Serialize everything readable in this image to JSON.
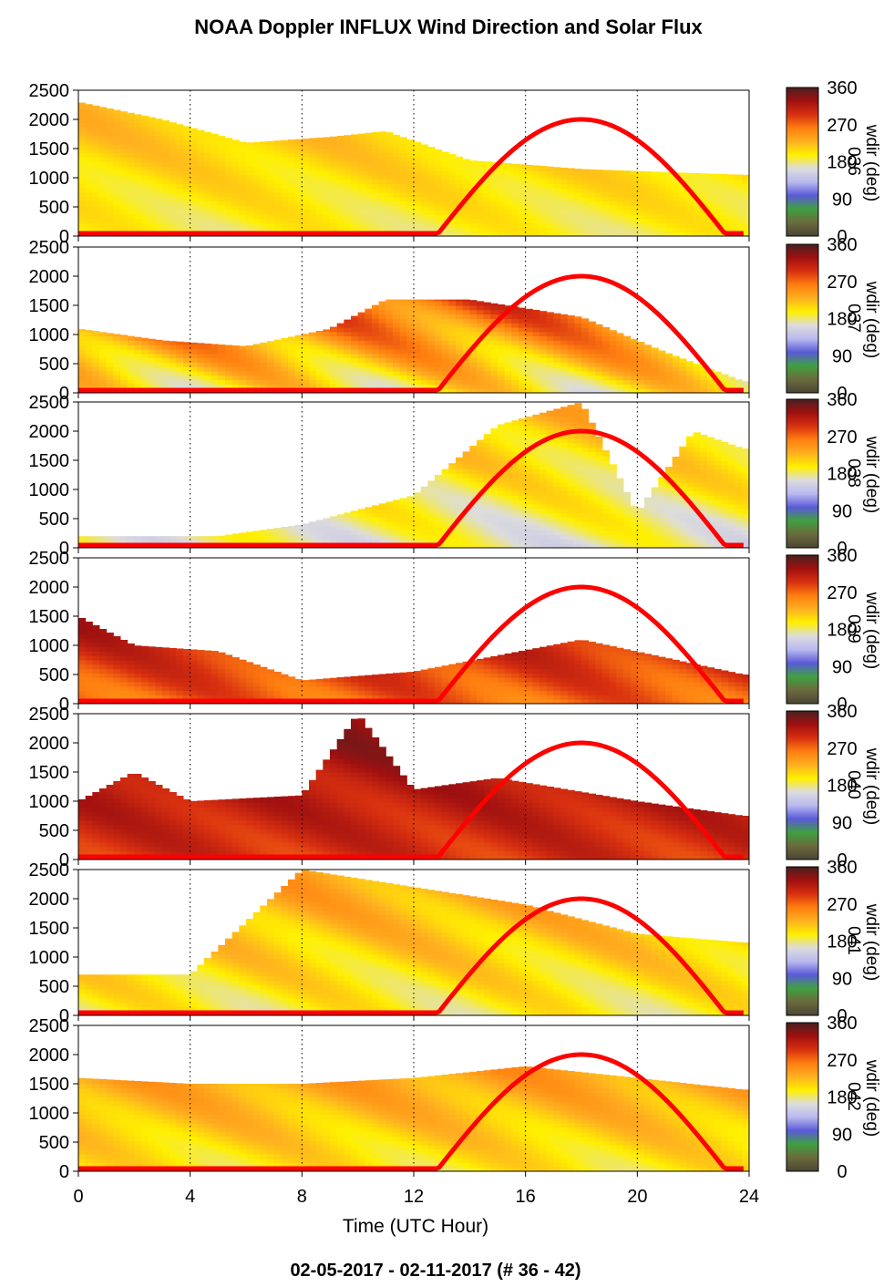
{
  "title": "NOAA Doppler INFLUX Wind Direction and Solar Flux",
  "footer": "02-05-2017 - 02-11-2017   (# 36 - 42)",
  "colors": {
    "solar_curve": "#ff0000",
    "colormap": [
      "#4a4535",
      "#6b6a3c",
      "#3fa040",
      "#5a5ad8",
      "#b9b9f0",
      "#dcdcdc",
      "#fff000",
      "#ffb020",
      "#ff7e10",
      "#d83010",
      "#a01010",
      "#4a2020"
    ]
  },
  "chart_data": {
    "type": "heatmap",
    "xlabel": "Time (UTC Hour)",
    "xlim": [
      0,
      24
    ],
    "x_ticks": [
      "0",
      "4",
      "8",
      "12",
      "16",
      "20",
      "24"
    ],
    "ylim": [
      0,
      2500
    ],
    "y_ticks": [
      "0",
      "500",
      "1000",
      "1500",
      "2000",
      "2500"
    ],
    "colorbar": {
      "range": [
        0,
        360
      ],
      "ticks": [
        "0",
        "90",
        "180",
        "270",
        "360"
      ],
      "label": "wdir (deg)"
    },
    "solar_flux": {
      "sunrise_hour": 12.8,
      "peak_hour": 18.0,
      "sunset_hour": 23.2
    },
    "panels": [
      {
        "day_label": "036",
        "wdir_layers": [
          {
            "h": [
              0,
              2300
            ],
            "deg": [
              175,
              240
            ],
            "x_end": 23.8,
            "ceiling": [
              [
                0,
                2300
              ],
              [
                3,
                2000
              ],
              [
                6,
                1600
              ],
              [
                9,
                1700
              ],
              [
                11,
                1800
              ],
              [
                14,
                1300
              ],
              [
                18,
                1150
              ],
              [
                23.8,
                1050
              ]
            ]
          }
        ]
      },
      {
        "day_label": "037",
        "wdir_layers": [
          {
            "h": [
              0,
              1700
            ],
            "deg": [
              160,
              320
            ],
            "x_end": 23.8,
            "ceiling": [
              [
                0,
                1100
              ],
              [
                3,
                900
              ],
              [
                6,
                800
              ],
              [
                9,
                1100
              ],
              [
                11,
                1600
              ],
              [
                14,
                1600
              ],
              [
                18,
                1300
              ],
              [
                21,
                700
              ],
              [
                23.8,
                200
              ]
            ]
          }
        ]
      },
      {
        "day_label": "038",
        "wdir_layers": [
          {
            "h": [
              0,
              2500
            ],
            "deg": [
              150,
              250
            ],
            "x_end": 23.8,
            "ceiling": [
              [
                0,
                200
              ],
              [
                5,
                200
              ],
              [
                8,
                400
              ],
              [
                12,
                900
              ],
              [
                15,
                2100
              ],
              [
                18,
                2500
              ],
              [
                20,
                600
              ],
              [
                22,
                2000
              ],
              [
                23.8,
                1700
              ]
            ]
          }
        ]
      },
      {
        "day_label": "039",
        "wdir_layers": [
          {
            "h": [
              0,
              1600
            ],
            "deg": [
              250,
              340
            ],
            "x_end": 23.8,
            "ceiling": [
              [
                0,
                1500
              ],
              [
                2,
                1000
              ],
              [
                5,
                900
              ],
              [
                8,
                400
              ],
              [
                12,
                550
              ],
              [
                18,
                1100
              ],
              [
                23.8,
                500
              ]
            ]
          }
        ]
      },
      {
        "day_label": "040",
        "wdir_layers": [
          {
            "h": [
              0,
              2500
            ],
            "deg": [
              280,
              350
            ],
            "x_end": 23.8,
            "ceiling": [
              [
                0,
                1000
              ],
              [
                2,
                1500
              ],
              [
                4,
                1000
              ],
              [
                8,
                1100
              ],
              [
                10,
                2500
              ],
              [
                12,
                1200
              ],
              [
                15,
                1400
              ],
              [
                20,
                1000
              ],
              [
                23.8,
                750
              ]
            ]
          }
        ]
      },
      {
        "day_label": "041",
        "wdir_layers": [
          {
            "h": [
              0,
              2500
            ],
            "deg": [
              170,
              260
            ],
            "x_end": 23.8,
            "ceiling": [
              [
                0,
                700
              ],
              [
                4,
                700
              ],
              [
                8,
                2500
              ],
              [
                12,
                2200
              ],
              [
                16,
                1900
              ],
              [
                20,
                1400
              ],
              [
                23.8,
                1250
              ]
            ]
          }
        ]
      },
      {
        "day_label": "042",
        "wdir_layers": [
          {
            "h": [
              0,
              1800
            ],
            "deg": [
              180,
              260
            ],
            "x_end": 23.8,
            "ceiling": [
              [
                0,
                1600
              ],
              [
                4,
                1500
              ],
              [
                8,
                1500
              ],
              [
                12,
                1600
              ],
              [
                16,
                1800
              ],
              [
                20,
                1600
              ],
              [
                23.8,
                1400
              ]
            ]
          }
        ]
      }
    ]
  }
}
